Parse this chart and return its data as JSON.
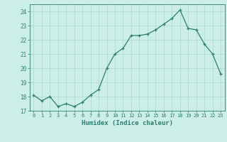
{
  "x": [
    0,
    1,
    2,
    3,
    4,
    5,
    6,
    7,
    8,
    9,
    10,
    11,
    12,
    13,
    14,
    15,
    16,
    17,
    18,
    19,
    20,
    21,
    22,
    23
  ],
  "y": [
    18.1,
    17.7,
    18.0,
    17.3,
    17.5,
    17.3,
    17.6,
    18.1,
    18.5,
    20.0,
    21.0,
    21.4,
    22.3,
    22.3,
    22.4,
    22.7,
    23.1,
    23.5,
    24.1,
    22.8,
    22.7,
    21.7,
    21.0,
    19.6
  ],
  "xlabel": "Humidex (Indice chaleur)",
  "ylim": [
    17,
    24.5
  ],
  "xlim": [
    -0.5,
    23.5
  ],
  "yticks": [
    17,
    18,
    19,
    20,
    21,
    22,
    23,
    24
  ],
  "xticks": [
    0,
    1,
    2,
    3,
    4,
    5,
    6,
    7,
    8,
    9,
    10,
    11,
    12,
    13,
    14,
    15,
    16,
    17,
    18,
    19,
    20,
    21,
    22,
    23
  ],
  "line_color": "#2e7d6e",
  "marker_color": "#2e7d6e",
  "bg_color": "#cceee8",
  "grid_color": "#aad8d0",
  "axis_color": "#2e7d6e",
  "tick_color": "#2e7d6e",
  "label_color": "#2e7d6e"
}
